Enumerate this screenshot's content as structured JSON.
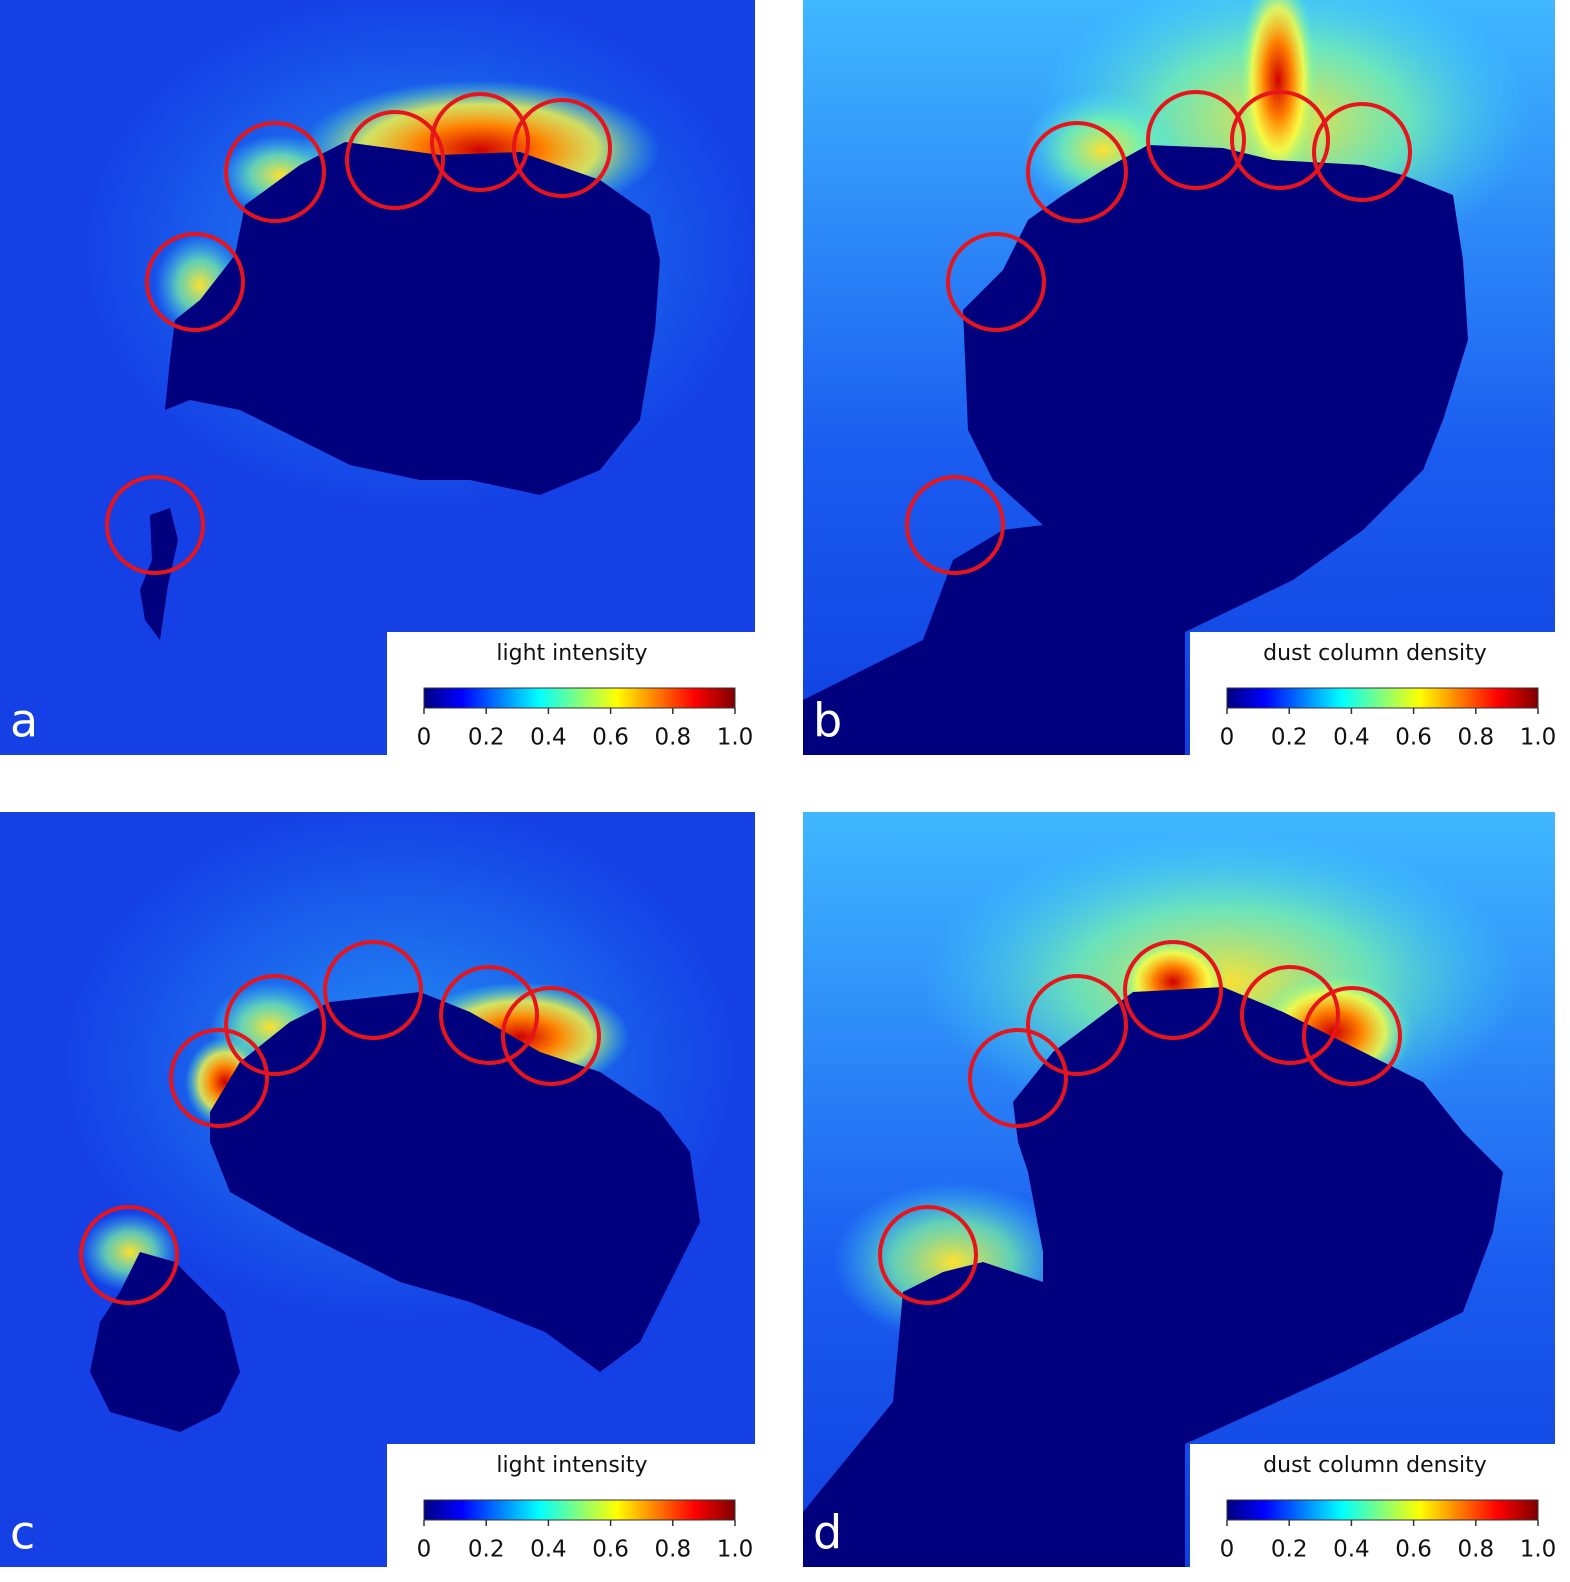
{
  "panels": [
    {
      "label": "a",
      "colorbar": {
        "title": "light intensity",
        "range": [
          0,
          1
        ],
        "ticks": [
          0,
          0.2,
          0.4,
          0.6,
          0.8,
          {
            "value": 1,
            "label": "1.0"
          }
        ]
      }
    },
    {
      "label": "b",
      "colorbar": {
        "title": "dust column density",
        "range": [
          0,
          1
        ],
        "ticks": [
          0,
          0.2,
          0.4,
          0.6,
          0.8,
          {
            "value": 1,
            "label": "1.0"
          }
        ]
      }
    },
    {
      "label": "c",
      "colorbar": {
        "title": "light intensity",
        "range": [
          0,
          1
        ],
        "ticks": [
          0,
          0.2,
          0.4,
          0.6,
          0.8,
          {
            "value": 1,
            "label": "1.0"
          }
        ]
      }
    },
    {
      "label": "d",
      "colorbar": {
        "title": "dust column density",
        "range": [
          0,
          1
        ],
        "ticks": [
          0,
          0.2,
          0.4,
          0.6,
          0.8,
          {
            "value": 1,
            "label": "1.0"
          }
        ]
      }
    }
  ]
}
